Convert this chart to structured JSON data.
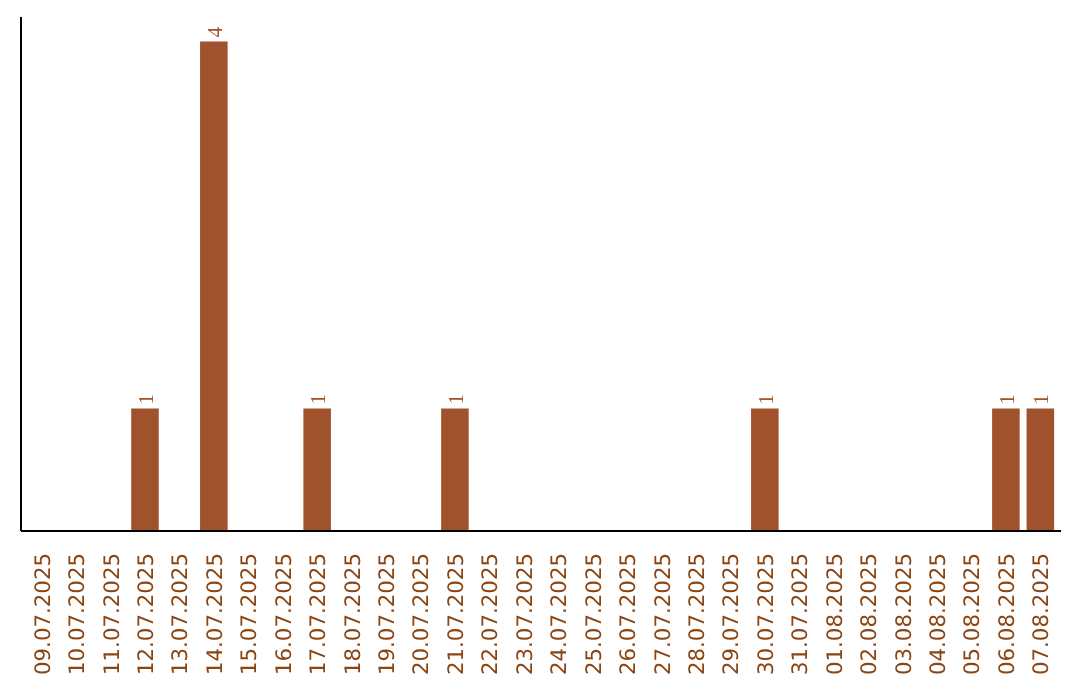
{
  "chart_data": {
    "type": "bar",
    "categories": [
      "09.07.2025",
      "10.07.2025",
      "11.07.2025",
      "12.07.2025",
      "13.07.2025",
      "14.07.2025",
      "15.07.2025",
      "16.07.2025",
      "17.07.2025",
      "18.07.2025",
      "19.07.2025",
      "20.07.2025",
      "21.07.2025",
      "22.07.2025",
      "23.07.2025",
      "24.07.2025",
      "25.07.2025",
      "26.07.2025",
      "27.07.2025",
      "28.07.2025",
      "29.07.2025",
      "30.07.2025",
      "31.07.2025",
      "01.08.2025",
      "02.08.2025",
      "03.08.2025",
      "04.08.2025",
      "05.08.2025",
      "06.08.2025",
      "07.08.2025"
    ],
    "values": [
      0,
      0,
      0,
      1,
      0,
      4,
      0,
      0,
      1,
      0,
      0,
      0,
      1,
      0,
      0,
      0,
      0,
      0,
      0,
      0,
      0,
      1,
      0,
      0,
      0,
      0,
      0,
      0,
      1,
      1
    ],
    "value_labels": [
      null,
      null,
      null,
      "1",
      null,
      "4",
      null,
      null,
      "1",
      null,
      null,
      null,
      "1",
      null,
      null,
      null,
      null,
      null,
      null,
      null,
      null,
      "1",
      null,
      null,
      null,
      null,
      null,
      null,
      "1",
      "1"
    ],
    "color": "#a0522d",
    "grid": false,
    "tick_labels": "x"
  }
}
